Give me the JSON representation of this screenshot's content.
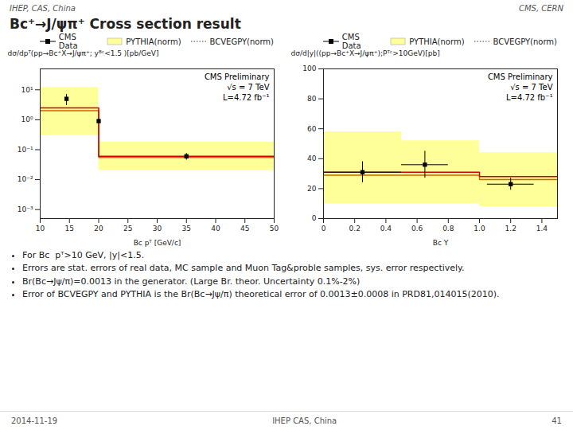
{
  "title": "Bc⁺→J/ψπ⁺ Cross section result",
  "header_texts": [
    "IHEP, CAS, China",
    "CMS, CERN"
  ],
  "bullets": [
    "For Bc  pᵀ>10 GeV, |y|<1.5.",
    "Errors are stat. errors of real data, MC sample and Muon Tag&proble samples, sys. error respectively.",
    "Br(Bc→Jψ/π)=0.0013 in the generator. (Large Br. theor. Uncertainty 0.1%-2%)",
    "Error of BCVEGPY and PYTHIA is the Br(Bc→Jψ/π) theoretical error of 0.0013±0.0008 in PRD81,014015(2010)."
  ],
  "footer_texts": [
    "2014-11-19",
    "IHEP CAS, China",
    "41"
  ],
  "chart_data": [
    {
      "type": "line",
      "xlabel": "Bc pᵀ [GeV/c]",
      "ylabel": "dσ/dpᵀ(pp→Bc⁺X→J/ψπ⁺; yᴮᶜ<1.5 )[pb/GeV]",
      "annotations": [
        "CMS Preliminary",
        "√s = 7 TeV",
        "L=4.72 fb⁻¹"
      ],
      "log": "y",
      "xlim": [
        10,
        50
      ],
      "ylim": [
        0.0005,
        50
      ],
      "xticks": [
        10,
        15,
        20,
        25,
        30,
        35,
        40,
        45,
        50
      ],
      "yticks": [
        {
          "value": 0.001,
          "label": "10⁻³"
        },
        {
          "value": 0.01,
          "label": "10⁻²"
        },
        {
          "value": 0.1,
          "label": "10⁻¹"
        },
        {
          "value": 1,
          "label": "10⁰"
        },
        {
          "value": 10,
          "label": "10¹"
        }
      ],
      "grid": false,
      "legend": "right",
      "series": [
        {
          "name": "CMS Data",
          "type": "scatter",
          "marker": "square",
          "color": "black",
          "x": [
            14.5,
            20,
            35
          ],
          "values": [
            5.0,
            0.9,
            0.06
          ],
          "yerr_lo": [
            2.0,
            0.15,
            0.015
          ],
          "yerr_hi": [
            2.0,
            0.15,
            0.015
          ]
        },
        {
          "name": "PYTHIA(norm)",
          "type": "area",
          "color": "#ffff99",
          "x": [
            10,
            20,
            20,
            50
          ],
          "lower": [
            0.3,
            0.3,
            0.02,
            0.02
          ],
          "upper": [
            12.0,
            12.0,
            0.18,
            0.18
          ]
        },
        {
          "type": "line",
          "color": "#cc6600",
          "x": [
            10,
            20,
            20,
            50
          ],
          "values": [
            2.0,
            2.0,
            0.055,
            0.055
          ]
        },
        {
          "type": "line",
          "color": "#cc0000",
          "x": [
            10,
            20,
            20,
            50
          ],
          "values": [
            2.5,
            2.5,
            0.06,
            0.06
          ]
        },
        {
          "name": "BCVEGPY(norm)",
          "type": "line",
          "color": "gray",
          "line_style": "dotted",
          "x": [],
          "values": []
        }
      ]
    },
    {
      "type": "line",
      "xlabel": "Bc Y",
      "ylabel": "dσ/d|y|((pp→Bc⁺X→J/ψπ⁺);Pᵀᶜ>10GeV)[pb]",
      "annotations": [
        "CMS Preliminary",
        "√s = 7 TeV",
        "L=4.72 fb⁻¹"
      ],
      "xlim": [
        0,
        1.5
      ],
      "ylim": [
        0,
        100
      ],
      "xticks": [
        0,
        0.2,
        0.4,
        0.6,
        0.8,
        {
          "value": 1.0,
          "label": "1.0"
        },
        1.2,
        1.4
      ],
      "yticks": [
        0,
        20,
        40,
        60,
        80,
        100
      ],
      "grid": false,
      "legend": "upper right",
      "series": [
        {
          "name": "CMS Data",
          "type": "scatter",
          "marker": "square",
          "color": "black",
          "x": [
            0.25,
            0.65,
            1.2
          ],
          "values": [
            31,
            36,
            23
          ],
          "xerr": [
            0.25,
            0.15,
            0.15
          ],
          "yerr": [
            7,
            9,
            4
          ]
        },
        {
          "name": "PYTHIA(norm)",
          "type": "area",
          "color": "#ffff99",
          "x": [
            0,
            0.5,
            0.5,
            1.0,
            1.0,
            1.5
          ],
          "lower": [
            10,
            10,
            10,
            10,
            8,
            8
          ],
          "upper": [
            58,
            58,
            52,
            52,
            44,
            44
          ]
        },
        {
          "type": "line",
          "color": "#cc6600",
          "x": [
            0,
            0.5,
            0.5,
            1.0,
            1.0,
            1.5
          ],
          "values": [
            29,
            29,
            29,
            29,
            26,
            26
          ]
        },
        {
          "type": "line",
          "color": "#cc0000",
          "x": [
            0,
            0.5,
            0.5,
            1.0,
            1.0,
            1.5
          ],
          "values": [
            31,
            31,
            31,
            31,
            28,
            28
          ]
        },
        {
          "name": "BCVEGPY(norm)",
          "type": "line",
          "color": "gray",
          "line_style": "dotted",
          "x": [],
          "values": []
        }
      ]
    }
  ]
}
